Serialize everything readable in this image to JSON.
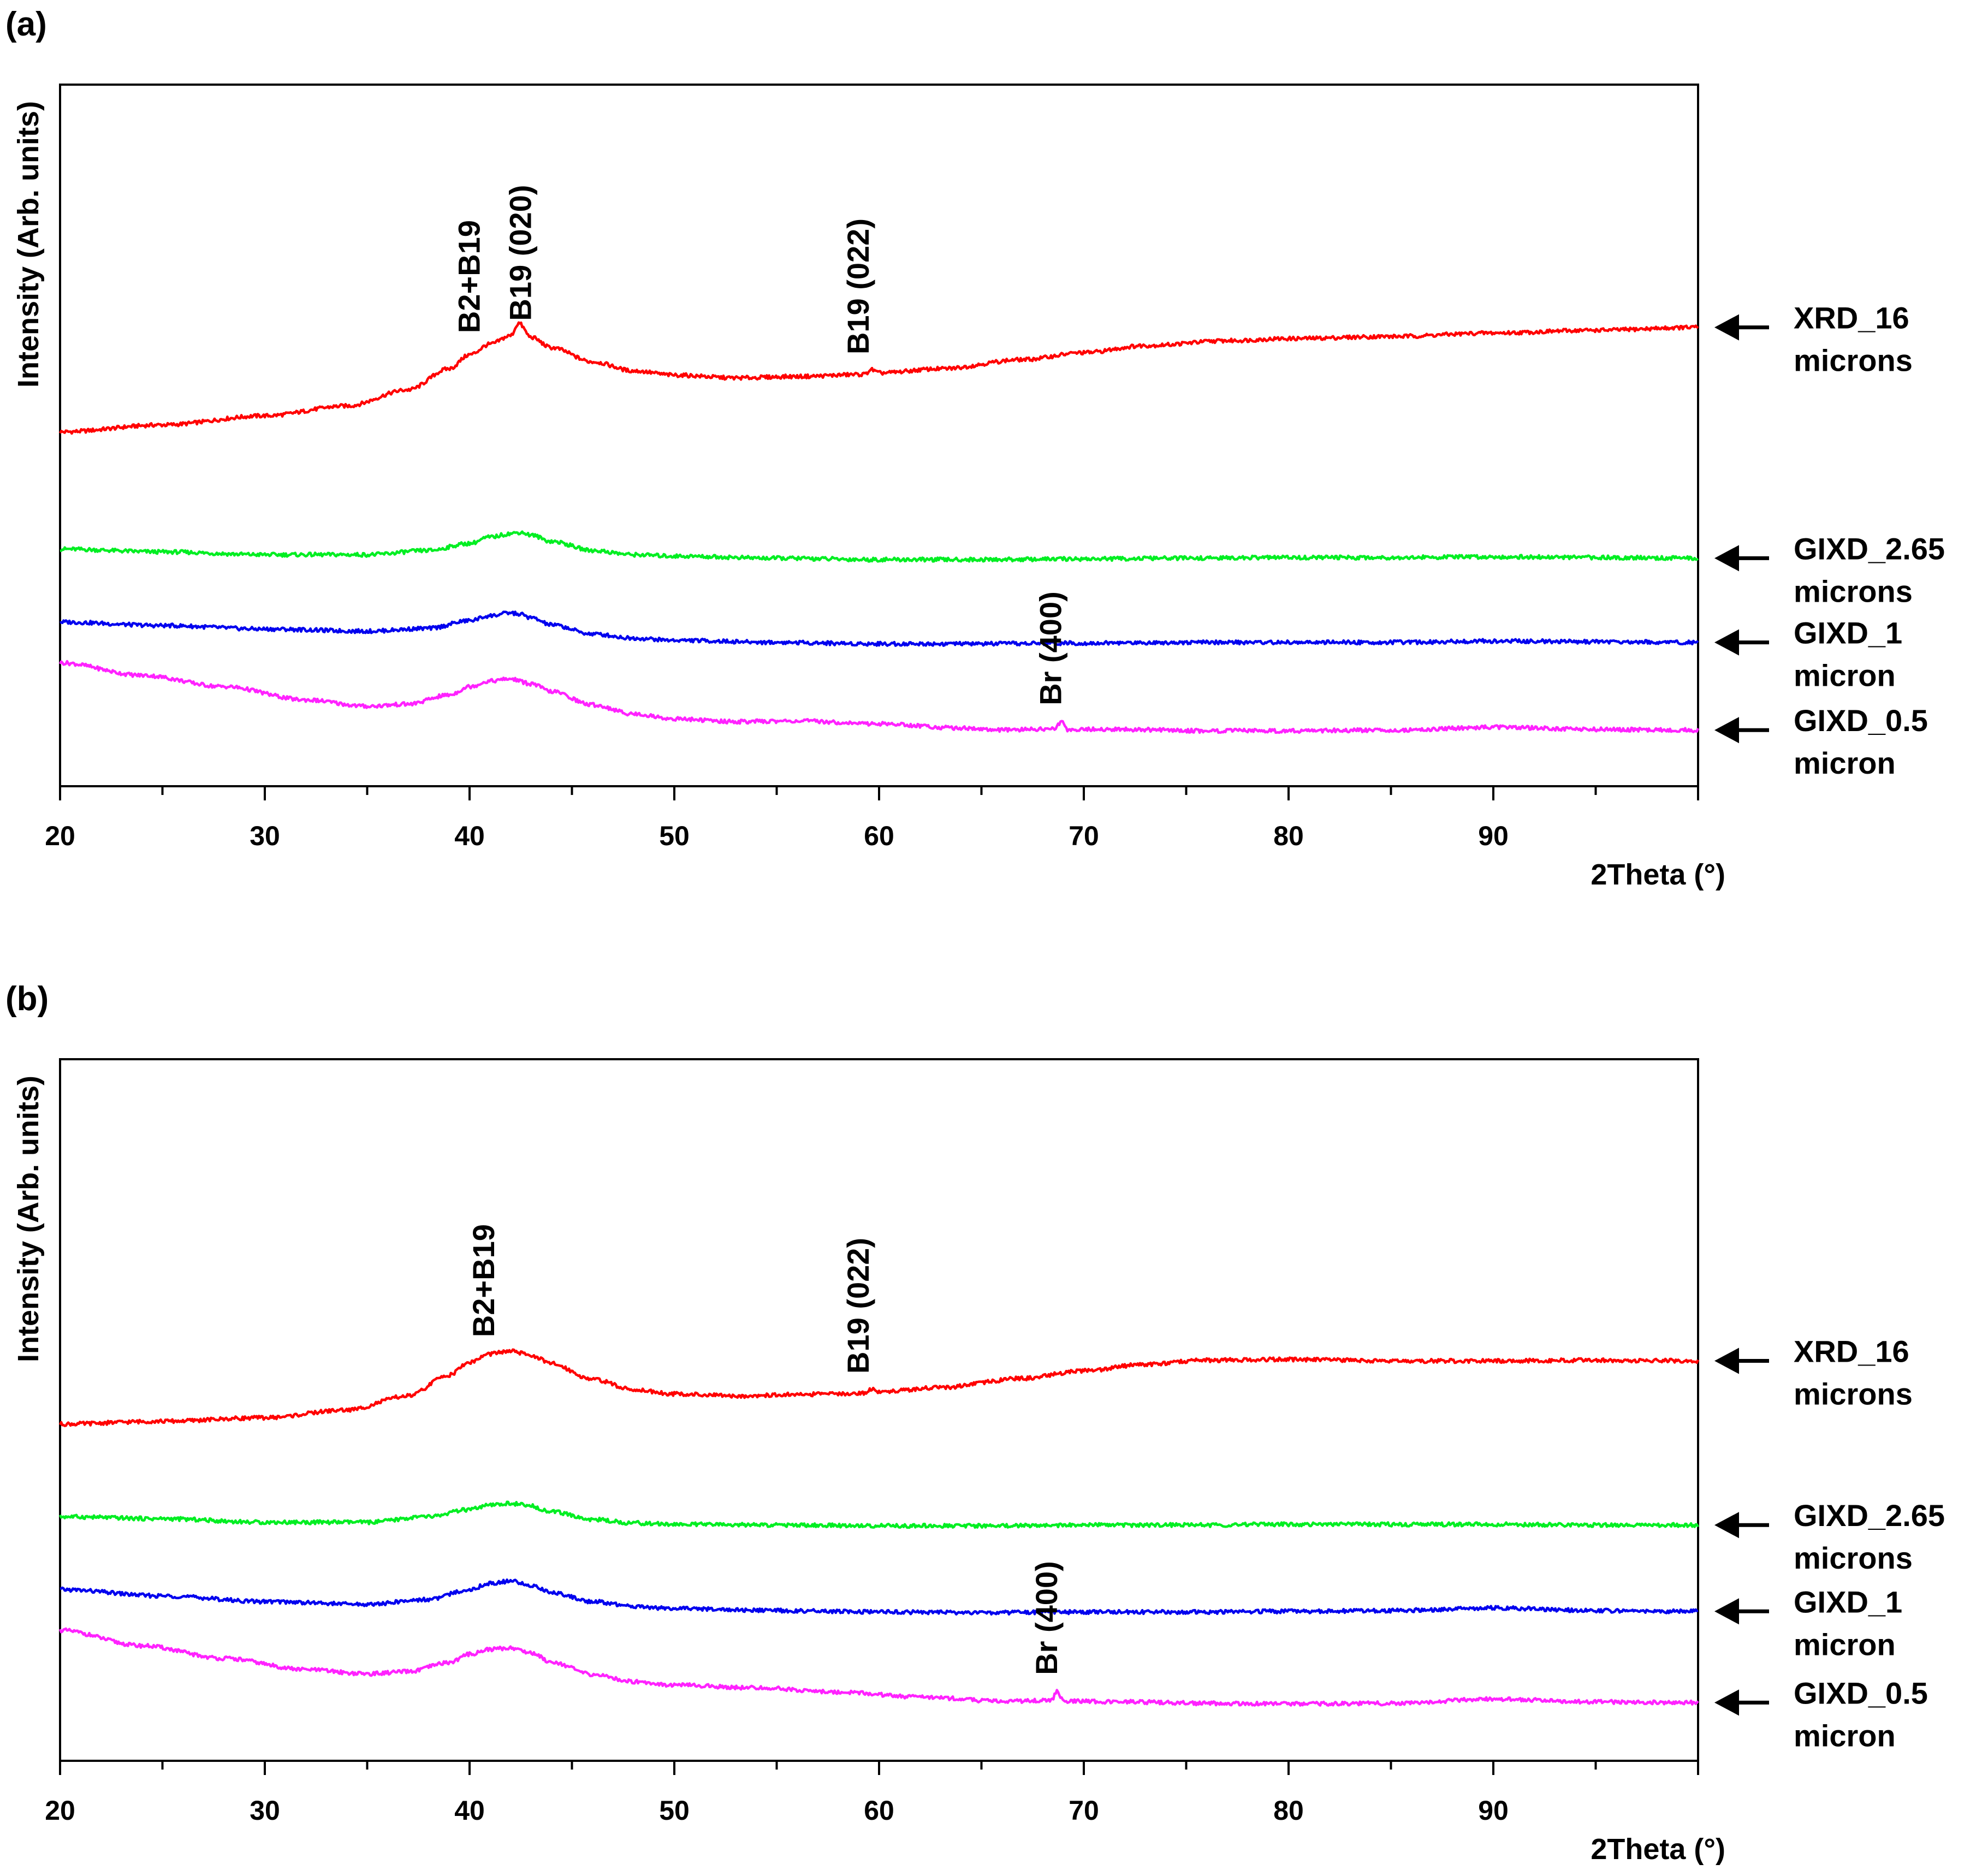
{
  "figure": {
    "x_unit": "2Theta (°)",
    "y_unit": "Intensity (Arb. units)"
  },
  "chart_data": [
    {
      "type": "line",
      "panel_label": "(a)",
      "xlabel": "2Theta (°)",
      "ylabel": "Intensity (Arb. units)",
      "xlim": [
        20,
        100
      ],
      "ylim": [
        0,
        100
      ],
      "xticks": [
        20,
        30,
        40,
        50,
        60,
        70,
        80,
        90
      ],
      "grid": false,
      "legend": "right",
      "series": [
        {
          "name": "XRD_16 microns",
          "label_lines": [
            "XRD_16",
            "microns"
          ],
          "color": "#ff0000",
          "x": [
            20,
            25,
            30,
            34,
            37,
            39,
            40,
            41,
            42,
            42.4,
            43,
            44,
            46,
            48,
            50,
            53,
            56,
            59.3,
            59.6,
            60,
            63,
            67,
            70,
            73,
            77,
            80,
            85,
            90,
            95,
            100
          ],
          "y": [
            50.5,
            51.5,
            52.8,
            54.2,
            56.5,
            59.5,
            61.5,
            63.0,
            64.2,
            66.0,
            64.0,
            62.5,
            60.5,
            59.2,
            58.6,
            58.2,
            58.4,
            58.7,
            59.4,
            58.9,
            59.5,
            60.8,
            61.8,
            62.8,
            63.5,
            63.8,
            64.1,
            64.6,
            65.0,
            65.4
          ]
        },
        {
          "name": "GIXD_2.65 microns",
          "label_lines": [
            "GIXD_2.65",
            "microns"
          ],
          "color": "#00ee22",
          "x": [
            20,
            25,
            30,
            35,
            38,
            40,
            41,
            42,
            42.5,
            43,
            44,
            46,
            48,
            50,
            55,
            60,
            65,
            70,
            75,
            80,
            85,
            90,
            95,
            100
          ],
          "y": [
            33.8,
            33.4,
            33.0,
            33.0,
            33.6,
            34.6,
            35.5,
            36.0,
            36.2,
            35.8,
            34.9,
            33.6,
            33.0,
            32.8,
            32.5,
            32.3,
            32.3,
            32.4,
            32.5,
            32.6,
            32.6,
            32.7,
            32.6,
            32.5
          ]
        },
        {
          "name": "GIXD_1 micron",
          "label_lines": [
            "GIXD_1",
            "micron"
          ],
          "color": "#0000ee",
          "x": [
            20,
            25,
            30,
            35,
            38,
            40,
            41,
            42,
            42.5,
            43,
            44,
            46,
            48,
            50,
            55,
            60,
            65,
            70,
            75,
            80,
            85,
            90,
            95,
            100
          ],
          "y": [
            23.4,
            22.9,
            22.4,
            22.1,
            22.5,
            23.6,
            24.3,
            24.7,
            24.5,
            24.0,
            23.0,
            21.7,
            21.1,
            20.8,
            20.5,
            20.3,
            20.3,
            20.4,
            20.5,
            20.5,
            20.5,
            20.7,
            20.6,
            20.5
          ]
        },
        {
          "name": "GIXD_0.5 micron",
          "label_lines": [
            "GIXD_0.5",
            "micron"
          ],
          "color": "#ff22ff",
          "x": [
            20,
            24,
            28,
            32,
            35,
            37,
            39,
            40,
            41,
            42,
            43,
            44,
            46,
            48,
            50,
            53,
            56,
            60,
            64,
            66,
            68.6,
            68.9,
            69.2,
            72,
            76,
            80,
            85,
            90,
            95,
            100
          ],
          "y": [
            17.6,
            15.8,
            14.2,
            12.3,
            11.4,
            11.7,
            13.0,
            14.2,
            15.0,
            15.3,
            14.6,
            13.5,
            11.6,
            10.3,
            9.6,
            9.2,
            9.3,
            8.9,
            8.3,
            8.0,
            8.2,
            9.2,
            8.1,
            8.1,
            7.9,
            7.9,
            8.0,
            8.4,
            8.1,
            8.0
          ]
        }
      ],
      "annotations": [
        {
          "text": "B2+B19",
          "x": 40.5,
          "series": "XRD_16 microns"
        },
        {
          "text": "B19 (020)",
          "x": 43.0,
          "series": "XRD_16 microns"
        },
        {
          "text": "B19 (022)",
          "x": 59.5,
          "series": "XRD_16 microns"
        },
        {
          "text": "Br (400)",
          "x": 68.9,
          "series": "GIXD_0.5 micron"
        }
      ]
    },
    {
      "type": "line",
      "panel_label": "(b)",
      "xlabel": "2Theta (°)",
      "ylabel": "Intensity (Arb. units)",
      "xlim": [
        20,
        100
      ],
      "ylim": [
        0,
        100
      ],
      "xticks": [
        20,
        30,
        40,
        50,
        60,
        70,
        80,
        90
      ],
      "grid": false,
      "legend": "right",
      "series": [
        {
          "name": "XRD_16 microns",
          "label_lines": [
            "XRD_16",
            "microns"
          ],
          "color": "#ff0000",
          "x": [
            20,
            25,
            30,
            34,
            37,
            39,
            40,
            41,
            42,
            43,
            44,
            46,
            48,
            50,
            53,
            56,
            59.3,
            59.6,
            60,
            63,
            67,
            70,
            73,
            76,
            80,
            85,
            90,
            95,
            100
          ],
          "y": [
            48.0,
            48.4,
            48.9,
            50.0,
            52.0,
            55.0,
            56.8,
            58.0,
            58.4,
            57.8,
            56.6,
            54.4,
            52.9,
            52.3,
            52.0,
            52.2,
            52.4,
            53.0,
            52.6,
            53.2,
            54.5,
            55.6,
            56.5,
            57.1,
            57.2,
            57.0,
            57.0,
            57.1,
            57.0
          ]
        },
        {
          "name": "GIXD_2.65 microns",
          "label_lines": [
            "GIXD_2.65",
            "microns"
          ],
          "color": "#00ee22",
          "x": [
            20,
            25,
            30,
            35,
            38,
            40,
            41,
            42,
            43,
            44,
            46,
            48,
            50,
            55,
            60,
            65,
            70,
            75,
            80,
            85,
            90,
            95,
            100
          ],
          "y": [
            34.8,
            34.5,
            34.0,
            34.0,
            34.8,
            35.8,
            36.4,
            36.7,
            36.3,
            35.5,
            34.4,
            33.9,
            33.7,
            33.6,
            33.5,
            33.5,
            33.6,
            33.6,
            33.7,
            33.7,
            33.7,
            33.6,
            33.6
          ]
        },
        {
          "name": "GIXD_1 micron",
          "label_lines": [
            "GIXD_1",
            "micron"
          ],
          "color": "#0000ee",
          "x": [
            20,
            25,
            30,
            35,
            38,
            40,
            41,
            42,
            43,
            44,
            46,
            48,
            50,
            55,
            60,
            65,
            70,
            75,
            80,
            85,
            90,
            95,
            100
          ],
          "y": [
            24.4,
            23.5,
            22.7,
            22.3,
            23.0,
            24.4,
            25.3,
            25.6,
            25.0,
            24.0,
            22.7,
            22.0,
            21.7,
            21.4,
            21.2,
            21.1,
            21.2,
            21.2,
            21.3,
            21.4,
            21.8,
            21.4,
            21.3
          ]
        },
        {
          "name": "GIXD_0.5 micron",
          "label_lines": [
            "GIXD_0.5",
            "micron"
          ],
          "color": "#ff22ff",
          "x": [
            20,
            24,
            28,
            32,
            35,
            37,
            39,
            40,
            41,
            42,
            43,
            44,
            46,
            48,
            50,
            54,
            58,
            62,
            66,
            68.4,
            68.7,
            69.0,
            72,
            76,
            80,
            85,
            90,
            95,
            100
          ],
          "y": [
            18.6,
            16.4,
            14.6,
            13.0,
            12.4,
            12.7,
            14.0,
            15.2,
            15.9,
            16.1,
            15.4,
            14.1,
            12.3,
            11.3,
            10.8,
            10.4,
            9.8,
            9.1,
            8.5,
            8.6,
            9.9,
            8.5,
            8.4,
            8.2,
            8.1,
            8.2,
            8.8,
            8.4,
            8.3
          ]
        }
      ],
      "annotations": [
        {
          "text": "B2+B19",
          "x": 41.2,
          "series": "XRD_16 microns"
        },
        {
          "text": "B19 (022)",
          "x": 59.5,
          "series": "XRD_16 microns"
        },
        {
          "text": "Br (400)",
          "x": 68.7,
          "series": "GIXD_0.5 micron"
        }
      ]
    }
  ]
}
